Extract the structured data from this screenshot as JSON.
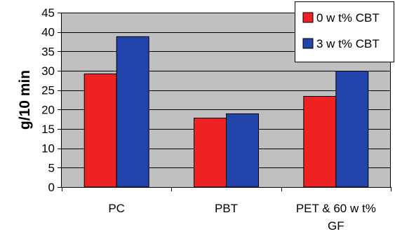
{
  "chart_data": {
    "type": "bar",
    "title": "",
    "xlabel": "",
    "ylabel": "g/10 min",
    "ylim": [
      0,
      45
    ],
    "yticks": [
      0,
      5,
      10,
      15,
      20,
      25,
      30,
      35,
      40,
      45
    ],
    "grid": "horizontal",
    "legend_position": "top-right",
    "plot_background": "#c0c0c0",
    "categories": [
      [
        "PC"
      ],
      [
        "PBT"
      ],
      [
        "PET & 60 w t%",
        "GF"
      ]
    ],
    "series": [
      {
        "name": "0 w t% CBT",
        "color": "#ee2222",
        "values": [
          29.2,
          17.8,
          23.4
        ]
      },
      {
        "name": "3 w t% CBT",
        "color": "#2244aa",
        "values": [
          38.8,
          18.9,
          29.9
        ]
      }
    ]
  }
}
